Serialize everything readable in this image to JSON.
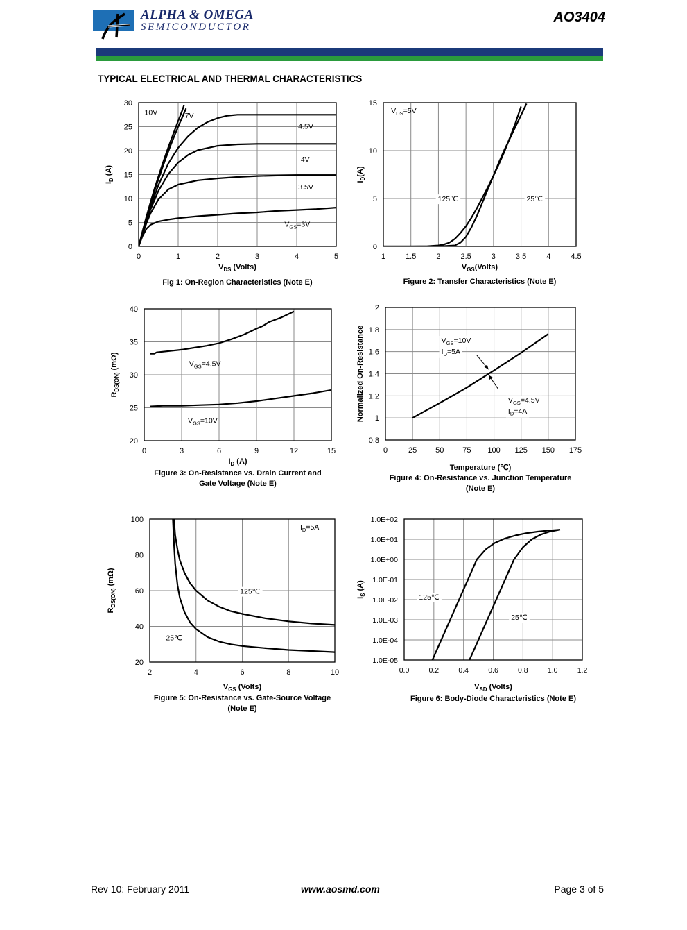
{
  "header": {
    "company_line1": "ALPHA & OMEGA",
    "company_line2": "SEMICONDUCTOR",
    "part_number": "AO3404",
    "colors": {
      "band_blue": "#1b3a7a",
      "band_green": "#2a9b3c",
      "logo_blue": "#1e6fb5"
    }
  },
  "section_title": "TYPICAL ELECTRICAL AND THERMAL CHARACTERISTICS",
  "footer": {
    "revision": "Rev 10: February 2011",
    "website": "www.aosmd.com",
    "page": "Page 3 of 5"
  },
  "chart_data": [
    {
      "id": "fig1",
      "type": "line",
      "caption": "Fig 1: On-Region Characteristics (Note E)",
      "xlabel": {
        "main": "V",
        "sub": "DS",
        "rest": " (Volts)"
      },
      "ylabel": {
        "main": "I",
        "sub": "D",
        "rest": " (A)"
      },
      "xlim": [
        0,
        5
      ],
      "ylim": [
        0,
        30
      ],
      "xscale": "linear",
      "yscale": "linear",
      "xticks": [
        "0",
        "1",
        "2",
        "3",
        "4",
        "5"
      ],
      "yticks": [
        "0",
        "5",
        "10",
        "15",
        "20",
        "25",
        "30"
      ],
      "grid": true,
      "series": [
        {
          "name": "10V",
          "x": [
            0,
            0.1,
            0.2,
            0.3,
            0.4,
            0.5,
            0.6,
            0.7,
            0.8,
            0.9,
            1.0,
            1.1,
            1.15
          ],
          "y": [
            0,
            3.2,
            6.3,
            9.2,
            12,
            14.6,
            17.1,
            19.5,
            21.8,
            24,
            26.2,
            28.3,
            29.5
          ]
        },
        {
          "name": "7V",
          "x": [
            0,
            0.1,
            0.2,
            0.3,
            0.4,
            0.5,
            0.6,
            0.7,
            0.8,
            0.9,
            1.0,
            1.1,
            1.2
          ],
          "y": [
            0,
            3,
            6,
            8.8,
            11.5,
            14,
            16.4,
            18.7,
            20.9,
            23,
            25,
            26.9,
            28.8
          ]
        },
        {
          "name": "4.5V",
          "x": [
            0,
            0.1,
            0.2,
            0.3,
            0.5,
            0.75,
            1.0,
            1.25,
            1.5,
            1.75,
            2.0,
            2.25,
            2.5,
            3.0,
            4.0,
            5.0
          ],
          "y": [
            0,
            2.8,
            5.6,
            8.2,
            12.8,
            17.3,
            20.6,
            23,
            24.8,
            26,
            26.8,
            27.3,
            27.5,
            27.5,
            27.5,
            27.5
          ]
        },
        {
          "name": "4V",
          "x": [
            0,
            0.1,
            0.2,
            0.3,
            0.5,
            0.75,
            1.0,
            1.25,
            1.5,
            2.0,
            2.5,
            3.0,
            4.0,
            5.0
          ],
          "y": [
            0,
            2.7,
            5.3,
            7.7,
            11.6,
            15.1,
            17.5,
            19.1,
            20.1,
            21,
            21.3,
            21.4,
            21.4,
            21.4
          ]
        },
        {
          "name": "3.5V",
          "x": [
            0,
            0.1,
            0.2,
            0.3,
            0.5,
            0.75,
            1.0,
            1.5,
            2.0,
            2.5,
            3.0,
            4.0,
            5.0
          ],
          "y": [
            0,
            2.5,
            4.9,
            6.9,
            9.8,
            11.9,
            12.9,
            13.8,
            14.2,
            14.5,
            14.7,
            14.9,
            14.9
          ]
        },
        {
          "name": "VGS=3V",
          "x": [
            0,
            0.1,
            0.2,
            0.3,
            0.5,
            0.75,
            1.0,
            1.5,
            2.0,
            2.5,
            3.0,
            3.5,
            4.0,
            4.5,
            5.0
          ],
          "y": [
            0,
            2.2,
            3.7,
            4.5,
            5.2,
            5.6,
            5.9,
            6.3,
            6.6,
            6.9,
            7.1,
            7.4,
            7.6,
            7.8,
            8.1
          ]
        }
      ],
      "annotations": [
        {
          "text": "10V",
          "x": 0.15,
          "y": 27.5,
          "anchor": "start"
        },
        {
          "text": "7V",
          "x": 1.17,
          "y": 26.8,
          "anchor": "start"
        },
        {
          "text": "4.5V",
          "x": 4.04,
          "y": 24.6,
          "anchor": "start"
        },
        {
          "text": "4V",
          "x": 4.1,
          "y": 17.7,
          "anchor": "start"
        },
        {
          "text": "3.5V",
          "x": 4.04,
          "y": 11.9,
          "anchor": "start"
        },
        {
          "main": "V",
          "sub": "GS",
          "rest": "=3V",
          "x": 3.69,
          "y": 4.1,
          "anchor": "start"
        }
      ]
    },
    {
      "id": "fig2",
      "type": "line",
      "caption": "Figure 2: Transfer Characteristics (Note E)",
      "xlabel": {
        "main": "V",
        "sub": "GS",
        "rest": "(Volts)"
      },
      "ylabel": {
        "main": "I",
        "sub": "D",
        "rest": "(A)"
      },
      "xlim": [
        1,
        4.5
      ],
      "ylim": [
        0,
        15
      ],
      "xscale": "linear",
      "yscale": "linear",
      "xticks": [
        "1",
        "1.5",
        "2",
        "2.5",
        "3",
        "3.5",
        "4",
        "4.5"
      ],
      "yticks": [
        "0",
        "5",
        "10",
        "15"
      ],
      "grid": true,
      "series": [
        {
          "name": "125℃",
          "x": [
            1.0,
            1.5,
            1.8,
            2.0,
            2.1,
            2.2,
            2.3,
            2.4,
            2.5,
            2.6,
            2.7,
            2.8,
            2.9,
            3.0,
            3.1,
            3.2,
            3.3,
            3.4,
            3.5
          ],
          "y": [
            0,
            0,
            0.02,
            0.1,
            0.2,
            0.4,
            0.8,
            1.4,
            2.1,
            3.0,
            4.0,
            5.1,
            6.2,
            7.4,
            8.6,
            9.9,
            11.4,
            12.9,
            14.6
          ]
        },
        {
          "name": "25℃",
          "x": [
            1.0,
            2.0,
            2.3,
            2.4,
            2.5,
            2.6,
            2.7,
            2.8,
            2.9,
            3.0,
            3.1,
            3.2,
            3.3,
            3.4,
            3.5,
            3.6
          ],
          "y": [
            0,
            0,
            0.1,
            0.4,
            1.0,
            2.0,
            3.2,
            4.6,
            6.0,
            7.4,
            8.8,
            10.1,
            11.3,
            12.5,
            13.7,
            14.9
          ]
        }
      ],
      "annotations": [
        {
          "main": "V",
          "sub": "DS",
          "rest": "=5V",
          "x": 1.14,
          "y": 13.9,
          "anchor": "start"
        },
        {
          "text": "125℃",
          "x": 1.99,
          "y": 4.7,
          "anchor": "start",
          "bg": true
        },
        {
          "text": "25℃",
          "x": 3.6,
          "y": 4.7,
          "anchor": "start",
          "bg": true
        }
      ]
    },
    {
      "id": "fig3",
      "type": "line",
      "caption": "Figure 3: On-Resistance vs. Drain Current and",
      "caption2": "Gate Voltage (Note E)",
      "xlabel": {
        "main": "I",
        "sub": "D",
        "rest": " (A)"
      },
      "ylabel": {
        "main": "R",
        "sub": "DS(ON)",
        "rest": " (mΩ)"
      },
      "xlim": [
        0,
        15
      ],
      "ylim": [
        20,
        40
      ],
      "xscale": "linear",
      "yscale": "linear",
      "xticks": [
        "0",
        "3",
        "6",
        "9",
        "12",
        "15"
      ],
      "yticks": [
        "20",
        "25",
        "30",
        "35",
        "40"
      ],
      "grid": true,
      "series": [
        {
          "name": "VGS=4.5V",
          "x": [
            0.5,
            0.8,
            1.0,
            2.0,
            3.0,
            4.0,
            5.0,
            6.0,
            7.0,
            8.0,
            9.0,
            9.5,
            10.0,
            11.0,
            12.0
          ],
          "y": [
            33.2,
            33.2,
            33.4,
            33.6,
            33.8,
            34.1,
            34.4,
            34.8,
            35.4,
            36.1,
            37.0,
            37.4,
            38.0,
            38.7,
            39.6
          ]
        },
        {
          "name": "VGS=10V",
          "x": [
            0.5,
            1.5,
            3.0,
            4.5,
            6.0,
            7.5,
            9.0,
            10.5,
            12.0,
            13.5,
            15.0
          ],
          "y": [
            25.2,
            25.3,
            25.3,
            25.4,
            25.5,
            25.7,
            26.0,
            26.4,
            26.8,
            27.2,
            27.7
          ]
        }
      ],
      "annotations": [
        {
          "main": "V",
          "sub": "GS",
          "rest": "=4.5V",
          "x": 3.6,
          "y": 31.3,
          "anchor": "start"
        },
        {
          "main": "V",
          "sub": "GS",
          "rest": "=10V",
          "x": 3.5,
          "y": 22.7,
          "anchor": "start"
        }
      ]
    },
    {
      "id": "fig4",
      "type": "line",
      "caption": "Figure 4: On-Resistance vs. Junction Temperature",
      "caption2": "(Note E)",
      "xlabel": {
        "text": "Temperature (℃)"
      },
      "ylabel": {
        "text": "Normalized On-Resistance"
      },
      "xlim": [
        0,
        175
      ],
      "ylim": [
        0.8,
        2
      ],
      "xscale": "linear",
      "yscale": "linear",
      "xticks": [
        "0",
        "25",
        "50",
        "75",
        "100",
        "125",
        "150",
        "175"
      ],
      "yticks": [
        "0.8",
        "1",
        "1.2",
        "1.4",
        "1.6",
        "1.8",
        "2"
      ],
      "grid": true,
      "series": [
        {
          "name": "curve",
          "x": [
            25,
            50,
            75,
            100,
            125,
            150
          ],
          "y": [
            1.0,
            1.135,
            1.275,
            1.43,
            1.59,
            1.76
          ]
        }
      ],
      "annotations": [
        {
          "main": "V",
          "sub": "GS",
          "rest": "=10V",
          "x": 51.5,
          "y": 1.68,
          "anchor": "start",
          "bg": true
        },
        {
          "main": "I",
          "sub": "D",
          "rest": "=5A",
          "x": 51.5,
          "y": 1.58,
          "anchor": "start",
          "bg": true
        },
        {
          "main": "V",
          "sub": "GS",
          "rest": "=4.5V",
          "x": 113,
          "y": 1.14,
          "anchor": "start",
          "bg": true
        },
        {
          "main": "I",
          "sub": "D",
          "rest": "=4A",
          "x": 113,
          "y": 1.04,
          "anchor": "start",
          "bg": true
        }
      ],
      "arrows": [
        {
          "x1": 84,
          "y1": 1.57,
          "x2": 95,
          "y2": 1.44
        },
        {
          "x1": 104,
          "y1": 1.26,
          "x2": 95,
          "y2": 1.39
        }
      ]
    },
    {
      "id": "fig5",
      "type": "line",
      "caption": "Figure 5: On-Resistance vs. Gate-Source Voltage",
      "caption2": "(Note E)",
      "xlabel": {
        "main": "V",
        "sub": "GS",
        "rest": " (Volts)"
      },
      "ylabel": {
        "main": "R",
        "sub": "DS(ON)",
        "rest": " (mΩ)"
      },
      "xlim": [
        2,
        10
      ],
      "ylim": [
        20,
        100
      ],
      "xscale": "linear",
      "yscale": "linear",
      "xticks": [
        "2",
        "4",
        "6",
        "8",
        "10"
      ],
      "yticks": [
        "20",
        "40",
        "60",
        "80",
        "100"
      ],
      "grid": true,
      "series": [
        {
          "name": "125℃",
          "x": [
            3.05,
            3.1,
            3.2,
            3.3,
            3.5,
            3.75,
            4.0,
            4.5,
            5.0,
            5.5,
            6.0,
            7.0,
            8.0,
            9.0,
            10.0
          ],
          "y": [
            100,
            91,
            83,
            77,
            70,
            64,
            60,
            54.5,
            51,
            48.5,
            47,
            44.5,
            42.8,
            41.6,
            40.8
          ]
        },
        {
          "name": "25℃",
          "x": [
            3.0,
            3.05,
            3.1,
            3.2,
            3.3,
            3.5,
            3.75,
            4.0,
            4.5,
            5.0,
            5.5,
            6.0,
            7.0,
            8.0,
            9.0,
            10.0
          ],
          "y": [
            100,
            86,
            75,
            63,
            56,
            48,
            42,
            38.5,
            34,
            31.5,
            30,
            29,
            27.8,
            26.8,
            26.2,
            25.6
          ]
        }
      ],
      "annotations": [
        {
          "main": "I",
          "sub": "D",
          "rest": "=5A",
          "x": 8.5,
          "y": 94.2,
          "anchor": "start"
        },
        {
          "text": "125℃",
          "x": 5.9,
          "y": 58.2,
          "anchor": "start",
          "bg": true
        },
        {
          "text": "25℃",
          "x": 2.7,
          "y": 32.3,
          "anchor": "start"
        }
      ]
    },
    {
      "id": "fig6",
      "type": "line",
      "caption": "Figure 6: Body-Diode Characteristics (Note E)",
      "xlabel": {
        "main": "V",
        "sub": "SD",
        "rest": " (Volts)"
      },
      "ylabel": {
        "main": "I",
        "sub": "S",
        "rest": " (A)"
      },
      "xlim": [
        0,
        1.2
      ],
      "ylim": [
        1e-05,
        100
      ],
      "xscale": "linear",
      "yscale": "log",
      "xticks": [
        "0.0",
        "0.2",
        "0.4",
        "0.6",
        "0.8",
        "1.0",
        "1.2"
      ],
      "yticks": [
        "1.0E-05",
        "1.0E-04",
        "1.0E-03",
        "1.0E-02",
        "1.0E-01",
        "1.0E+00",
        "1.0E+01",
        "1.0E+02"
      ],
      "grid": true,
      "series": [
        {
          "name": "125℃",
          "x": [
            0.19,
            0.25,
            0.31,
            0.37,
            0.43,
            0.49,
            0.55,
            0.61,
            0.68,
            0.75,
            0.82,
            0.9,
            0.98,
            1.05
          ],
          "y": [
            1e-05,
            0.0001,
            0.001,
            0.01,
            0.1,
            1,
            3.2,
            6.5,
            11,
            15.5,
            20,
            24,
            27.5,
            30
          ]
        },
        {
          "name": "25℃",
          "x": [
            0.44,
            0.5,
            0.56,
            0.62,
            0.68,
            0.74,
            0.8,
            0.86,
            0.92,
            0.98,
            1.05
          ],
          "y": [
            1e-05,
            0.0001,
            0.001,
            0.01,
            0.1,
            1,
            4,
            10,
            17,
            24,
            30
          ]
        }
      ],
      "annotations": [
        {
          "text": "125℃",
          "x": 0.1,
          "y": 0.01,
          "anchor": "start",
          "bg": true
        },
        {
          "text": "25℃",
          "x": 0.72,
          "y": 0.001,
          "anchor": "start",
          "bg": true
        }
      ]
    }
  ]
}
